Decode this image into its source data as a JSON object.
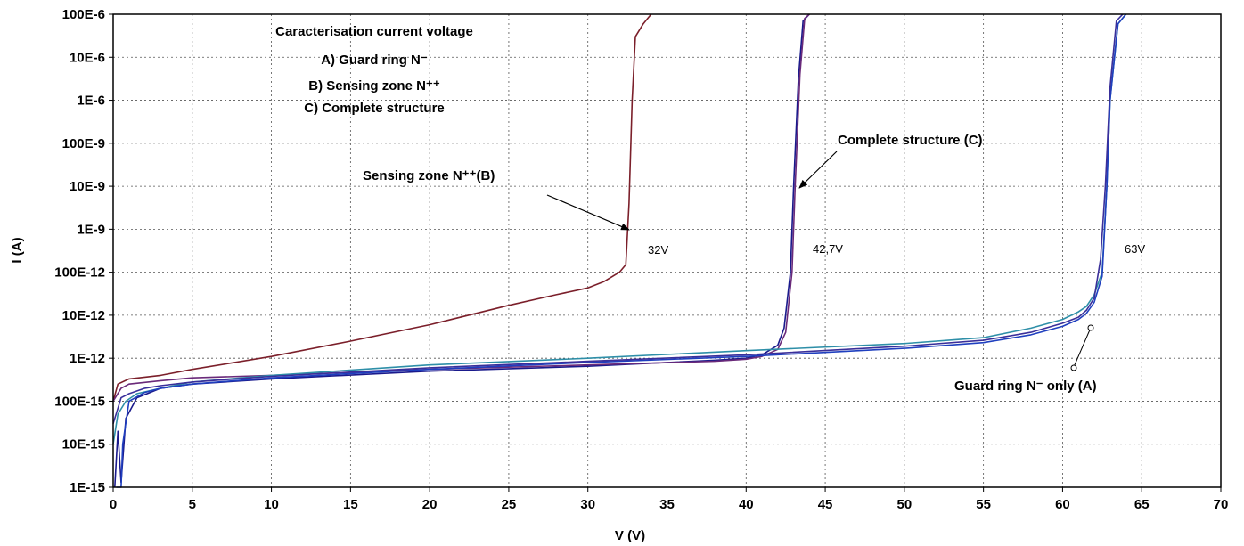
{
  "chart_data": {
    "type": "line",
    "title": [
      "Caracterisation current voltage",
      "A) Guard ring N⁻",
      "B) Sensing zone N⁺⁺",
      "C) Complete structure"
    ],
    "xlabel": "V (V)",
    "ylabel": "I (A)",
    "xlim": [
      0,
      70
    ],
    "ylim_log10": [
      -15,
      -4
    ],
    "y_scale": "log",
    "grid": "dotted",
    "x_ticks": [
      "0",
      "5",
      "10",
      "15",
      "20",
      "25",
      "30",
      "35",
      "40",
      "45",
      "50",
      "55",
      "60",
      "65",
      "70"
    ],
    "y_ticks": [
      "1E-15",
      "10E-15",
      "100E-15",
      "1E-12",
      "10E-12",
      "100E-12",
      "1E-9",
      "10E-9",
      "100E-9",
      "1E-6",
      "10E-6",
      "100E-6"
    ],
    "annotations": {
      "sensing": "Sensing zone N⁺⁺(B)",
      "complete": "Complete structure (C)",
      "guard": "Guard ring N⁻ only (A)",
      "v32": "32V",
      "v427": "42,7V",
      "v63": "63V"
    },
    "series": [
      {
        "color": "#7b1f2a",
        "x": [
          0,
          0.3,
          1,
          3,
          5,
          10,
          15,
          20,
          25,
          28,
          30,
          31,
          32,
          32.4,
          32.6,
          32.8,
          33.0,
          33.5,
          34.0
        ],
        "y": [
          1e-13,
          2.5e-13,
          3.3e-13,
          4e-13,
          5.5e-13,
          1.1e-12,
          2.5e-12,
          6e-12,
          1.7e-11,
          3e-11,
          4.3e-11,
          6e-11,
          1e-10,
          1.5e-10,
          4e-09,
          1e-06,
          3e-05,
          6e-05,
          0.0001
        ]
      },
      {
        "color": "#1a1a8c",
        "x": [
          0.1,
          0.3,
          0.5,
          0.8,
          1.5,
          3,
          5,
          10,
          20,
          30,
          38,
          40,
          41,
          42,
          42.4,
          42.8,
          43.0,
          43.3,
          43.6,
          44.0
        ],
        "y": [
          1e-15,
          2e-14,
          1.3e-15,
          4e-14,
          1.2e-13,
          2e-13,
          2.5e-13,
          3.3e-13,
          5e-13,
          6.5e-13,
          9e-13,
          1e-12,
          1.2e-12,
          2e-12,
          5e-12,
          1e-10,
          1e-08,
          3e-06,
          7e-05,
          0.0001
        ]
      },
      {
        "color": "#6a2a7a",
        "x": [
          0,
          0.5,
          1,
          3,
          5,
          10,
          20,
          30,
          38,
          40,
          41,
          42,
          42.5,
          42.9,
          43.1,
          43.4,
          43.7,
          44.0
        ],
        "y": [
          1e-13,
          2e-13,
          2.5e-13,
          3e-13,
          3.5e-13,
          4e-13,
          5.5e-13,
          7e-13,
          8.5e-13,
          9.5e-13,
          1.1e-12,
          1.6e-12,
          4e-12,
          1e-10,
          1e-08,
          4e-06,
          8e-05,
          0.0001
        ]
      },
      {
        "color": "#2e8fa8",
        "x": [
          0,
          0.3,
          0.8,
          1.5,
          3,
          5,
          10,
          20,
          30,
          40,
          50,
          55,
          58,
          60,
          61,
          61.5,
          62,
          62.5,
          62.8,
          63.0,
          63.5,
          64
        ],
        "y": [
          1e-14,
          5e-14,
          1e-13,
          1.5e-13,
          2e-13,
          2.8e-13,
          4e-13,
          7e-13,
          1e-12,
          1.5e-12,
          2.2e-12,
          3e-12,
          5e-12,
          8e-12,
          1.2e-11,
          1.6e-11,
          3e-11,
          1e-10,
          1e-08,
          1e-06,
          6e-05,
          0.0001
        ]
      },
      {
        "color": "#1f3fbf",
        "x": [
          0.2,
          0.5,
          0.6,
          1,
          2,
          3,
          5,
          10,
          20,
          30,
          40,
          50,
          55,
          58,
          60,
          61,
          61.5,
          62,
          62.5,
          62.8,
          63.0,
          63.5,
          64
        ],
        "y": [
          1e-15,
          1e-15,
          1e-14,
          1e-13,
          1.6e-13,
          2e-13,
          2.5e-13,
          3.5e-13,
          5.5e-13,
          8e-13,
          1.1e-12,
          1.7e-12,
          2.3e-12,
          3.5e-12,
          5.5e-12,
          8e-12,
          1.1e-11,
          2e-11,
          8e-11,
          1e-08,
          1e-06,
          6e-05,
          0.0001
        ]
      },
      {
        "color": "#3a2f9a",
        "x": [
          0,
          0.5,
          1,
          2,
          3,
          5,
          10,
          20,
          30,
          40,
          50,
          55,
          58,
          60,
          61,
          61.5,
          62,
          62.4,
          62.7,
          63.0,
          63.4,
          63.8
        ],
        "y": [
          3e-14,
          1.2e-13,
          1.5e-13,
          2e-13,
          2.3e-13,
          2.8e-13,
          3.8e-13,
          6e-13,
          8.5e-13,
          1.2e-12,
          1.9e-12,
          2.6e-12,
          4e-12,
          6.5e-12,
          9e-12,
          1.3e-11,
          2.5e-11,
          2e-10,
          1e-08,
          2e-06,
          7e-05,
          0.0001
        ]
      }
    ]
  }
}
